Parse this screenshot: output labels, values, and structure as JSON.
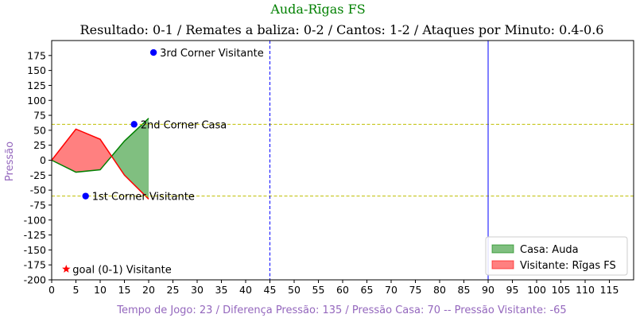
{
  "chart_data": {
    "type": "area",
    "suptitle": "Auda-Rīgas FS",
    "title": "Resultado: 0-1 / Remates a baliza: 0-2 / Cantos: 1-2 / Ataques por Minuto: 0.4-0.6",
    "xlabel": "Tempo de Jogo: 23 / Diferença Pressão: 135 / Pressão Casa: 70 -- Pressão Visitante: -65",
    "ylabel": "Pressão",
    "xlim": [
      0,
      120
    ],
    "ylim": [
      -200,
      200
    ],
    "xticks": [
      0,
      5,
      10,
      15,
      20,
      25,
      30,
      35,
      40,
      45,
      50,
      55,
      60,
      65,
      70,
      75,
      80,
      85,
      90,
      95,
      100,
      105,
      110,
      115
    ],
    "yticks": [
      -200,
      -175,
      -150,
      -125,
      -100,
      -75,
      -50,
      -25,
      0,
      25,
      50,
      75,
      100,
      125,
      150,
      175
    ],
    "series": [
      {
        "name": "Casa: Auda",
        "color": "#008000",
        "fill": "#80bf80",
        "x": [
          0,
          5,
          10,
          15,
          20
        ],
        "y": [
          0,
          -20,
          -16,
          32,
          70
        ]
      },
      {
        "name": "Visitante: Rīgas FS",
        "color": "#ff0000",
        "fill": "#ff8080",
        "x": [
          0,
          5,
          10,
          15,
          20
        ],
        "y": [
          0,
          52,
          35,
          -25,
          -65
        ]
      }
    ],
    "hlines": [
      {
        "y": 60,
        "color": "#bfbf00",
        "style": "dashed"
      },
      {
        "y": -60,
        "color": "#bfbf00",
        "style": "dashed"
      }
    ],
    "vlines": [
      {
        "x": 45,
        "color": "#0000ff",
        "style": "dashed"
      },
      {
        "x": 90,
        "color": "#0000ff",
        "style": "solid"
      }
    ],
    "annotations": [
      {
        "x": 21,
        "y": 180,
        "text": "3rd Corner Visitante",
        "marker": "dot",
        "color": "#0000ff"
      },
      {
        "x": 17,
        "y": 60,
        "text": "2nd Corner Casa",
        "marker": "dot",
        "color": "#0000ff"
      },
      {
        "x": 7,
        "y": -60,
        "text": "1st Corner Visitante",
        "marker": "dot",
        "color": "#0000ff"
      },
      {
        "x": 3,
        "y": -182,
        "text": "goal (0-1) Visitante",
        "marker": "star",
        "color": "#ff0000"
      }
    ],
    "legend": {
      "position": "bottom-right",
      "entries": [
        "Casa: Auda",
        "Visitante: Rīgas FS"
      ]
    },
    "colors": {
      "title": "#008000",
      "axis_label": "#9467bd"
    }
  }
}
